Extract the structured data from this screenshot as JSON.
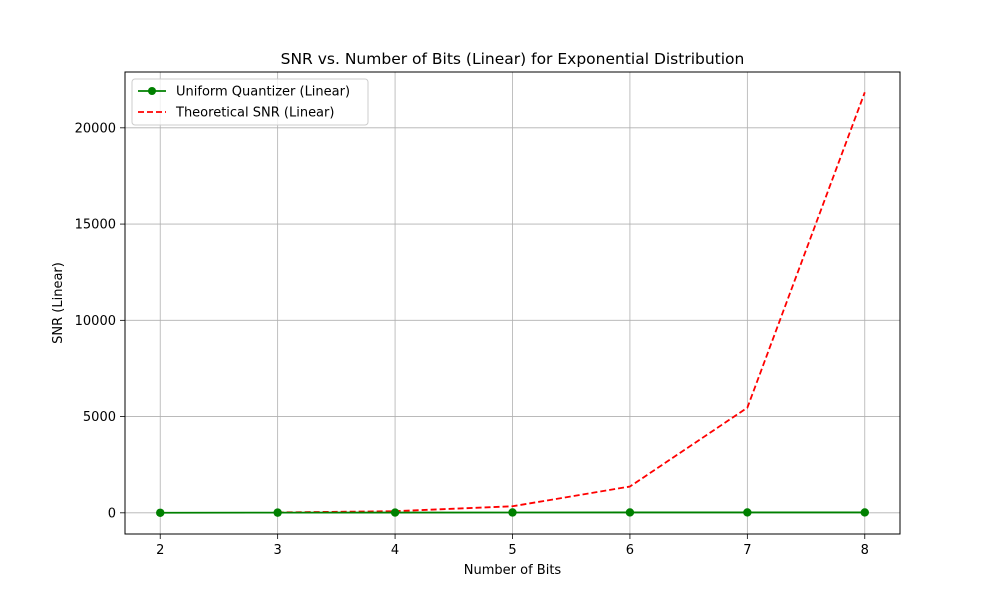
{
  "chart_data": {
    "type": "line",
    "title": "SNR vs. Number of Bits (Linear) for Exponential Distribution",
    "xlabel": "Number of Bits",
    "ylabel": "SNR (Linear)",
    "x": [
      2,
      3,
      4,
      5,
      6,
      7,
      8
    ],
    "xlim": [
      1.7,
      8.3
    ],
    "ylim": [
      -1100,
      22900
    ],
    "xticks": [
      "2",
      "3",
      "4",
      "5",
      "6",
      "7",
      "8"
    ],
    "yticks": [
      "0",
      "5000",
      "10000",
      "15000",
      "20000"
    ],
    "grid": true,
    "legend_position": "top-left",
    "series": [
      {
        "name": "Uniform Quantizer (Linear)",
        "values": [
          3,
          10,
          15,
          18,
          19,
          19,
          19
        ],
        "color": "#008000",
        "line_style": "solid",
        "marker": "circle"
      },
      {
        "name": "Theoretical SNR (Linear)",
        "values": [
          21,
          85,
          341,
          1365,
          5461,
          21845
        ],
        "x": [
          3,
          4,
          5,
          6,
          7,
          8
        ],
        "color": "#ff0000",
        "line_style": "dashed",
        "marker": "none"
      }
    ]
  }
}
